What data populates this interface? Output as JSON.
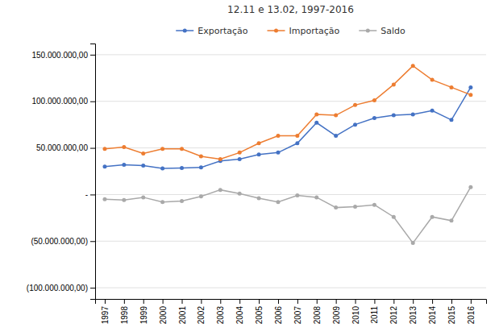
{
  "chart_data": {
    "type": "line",
    "title": "12.11 e 13.02, 1997-2016",
    "x": [
      1997,
      1998,
      1999,
      2000,
      2001,
      2002,
      2003,
      2004,
      2005,
      2006,
      2007,
      2008,
      2009,
      2010,
      2011,
      2012,
      2013,
      2014,
      2015,
      2016
    ],
    "series": [
      {
        "name": "Exportação",
        "color": "#4472C4",
        "marker": "circle",
        "values": [
          30000000,
          32000000,
          31000000,
          28000000,
          28500000,
          29000000,
          36000000,
          38000000,
          43000000,
          45000000,
          55000000,
          77000000,
          63000000,
          75000000,
          82000000,
          85000000,
          86000000,
          90000000,
          80000000,
          115000000
        ]
      },
      {
        "name": "Importação",
        "color": "#ED7D31",
        "marker": "circle",
        "values": [
          49000000,
          51000000,
          44000000,
          49000000,
          49000000,
          41000000,
          38000000,
          45000000,
          55000000,
          63000000,
          63000000,
          86000000,
          85000000,
          96000000,
          101000000,
          118000000,
          138000000,
          123000000,
          115000000,
          107000000
        ]
      },
      {
        "name": "Saldo",
        "color": "#A9A9A9",
        "marker": "circle",
        "values": [
          -5000000,
          -6000000,
          -3000000,
          -8000000,
          -7000000,
          -2000000,
          5000000,
          1000000,
          -4000000,
          -8000000,
          -1000000,
          -3000000,
          -14000000,
          -13000000,
          -11000000,
          -24000000,
          -52000000,
          -24000000,
          -28000000,
          8000000
        ]
      }
    ],
    "xlim": [
      1996.5,
      2016.8
    ],
    "xticks": [
      1997,
      1998,
      1999,
      2000,
      2001,
      2002,
      2003,
      2004,
      2005,
      2006,
      2007,
      2008,
      2009,
      2010,
      2011,
      2012,
      2013,
      2014,
      2015,
      2016
    ],
    "ylim": [
      -112000000,
      162000000
    ],
    "yticks": [
      {
        "value": 150000000,
        "label": "150.000.000,00"
      },
      {
        "value": 100000000,
        "label": "100.000.000,00"
      },
      {
        "value": 50000000,
        "label": "50.000.000,00"
      },
      {
        "value": 0,
        "label": "-"
      },
      {
        "value": -50000000,
        "label": "(50.000.000,00)"
      },
      {
        "value": -100000000,
        "label": "(100.000.000,00)"
      }
    ],
    "grid": true,
    "legend": "top"
  }
}
